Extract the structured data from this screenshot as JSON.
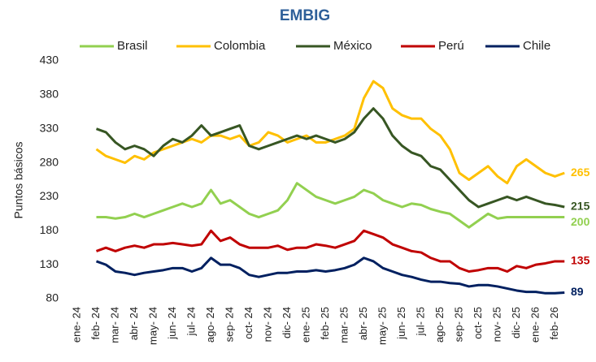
{
  "chart_data": {
    "type": "line",
    "title": "EMBIG",
    "y_label": "Puntos básicos",
    "categories": [
      "ene- 24",
      null,
      "feb- 24",
      null,
      "mar- 24",
      null,
      "abr- 24",
      null,
      "may- 24",
      null,
      "jun- 24",
      null,
      "jul- 24",
      null,
      "ago- 24",
      null,
      "sep- 24",
      null,
      "oct- 24",
      null,
      "nov- 24",
      null,
      "dic- 24",
      null,
      "ene- 25",
      null,
      "feb- 25",
      null,
      "mar- 25",
      null,
      "abr- 25",
      null,
      "may- 25",
      null,
      "jun- 25",
      null,
      "jul- 25",
      null,
      "ago- 25",
      null,
      "sep- 25",
      null,
      "oct- 25",
      null,
      "nov- 25",
      null,
      "dic- 25",
      null,
      "ene- 26",
      null,
      "feb- 26",
      null
    ],
    "series": [
      {
        "name": "Brasil",
        "color": "#92d050",
        "values": [
          null,
          null,
          200,
          200,
          198,
          200,
          205,
          200,
          205,
          210,
          215,
          220,
          215,
          220,
          240,
          220,
          225,
          215,
          205,
          200,
          205,
          210,
          225,
          250,
          240,
          230,
          225,
          220,
          225,
          230,
          240,
          235,
          225,
          220,
          215,
          220,
          218,
          212,
          208,
          205,
          195,
          185,
          195,
          205,
          198,
          200,
          200,
          200,
          200,
          200,
          200,
          200
        ]
      },
      {
        "name": "Colombia",
        "color": "#ffc000",
        "values": [
          null,
          null,
          300,
          290,
          285,
          280,
          290,
          285,
          295,
          300,
          305,
          310,
          315,
          310,
          320,
          320,
          315,
          320,
          305,
          310,
          325,
          320,
          310,
          315,
          320,
          310,
          310,
          315,
          320,
          330,
          375,
          400,
          390,
          360,
          350,
          345,
          345,
          330,
          320,
          300,
          265,
          255,
          265,
          275,
          260,
          250,
          275,
          285,
          275,
          265,
          260,
          265
        ]
      },
      {
        "name": "México",
        "color": "#375623",
        "values": [
          null,
          null,
          330,
          325,
          310,
          300,
          305,
          300,
          290,
          305,
          315,
          310,
          320,
          335,
          320,
          325,
          330,
          335,
          305,
          300,
          305,
          310,
          315,
          320,
          315,
          320,
          315,
          310,
          315,
          325,
          345,
          360,
          345,
          320,
          305,
          295,
          290,
          275,
          270,
          255,
          240,
          225,
          215,
          220,
          225,
          230,
          225,
          230,
          225,
          220,
          218,
          215
        ]
      },
      {
        "name": "Perú",
        "color": "#c00000",
        "values": [
          null,
          null,
          150,
          155,
          150,
          155,
          158,
          155,
          160,
          160,
          162,
          160,
          158,
          160,
          180,
          165,
          170,
          160,
          155,
          155,
          155,
          158,
          152,
          155,
          155,
          160,
          158,
          155,
          160,
          165,
          180,
          175,
          170,
          160,
          155,
          150,
          148,
          140,
          135,
          135,
          125,
          120,
          122,
          125,
          125,
          120,
          128,
          125,
          130,
          132,
          135,
          135
        ]
      },
      {
        "name": "Chile",
        "color": "#002060",
        "values": [
          null,
          null,
          135,
          130,
          120,
          118,
          115,
          118,
          120,
          122,
          125,
          125,
          120,
          125,
          140,
          130,
          130,
          125,
          115,
          112,
          115,
          118,
          118,
          120,
          120,
          122,
          120,
          122,
          125,
          130,
          140,
          135,
          125,
          120,
          115,
          112,
          108,
          105,
          105,
          103,
          102,
          98,
          100,
          100,
          98,
          95,
          92,
          90,
          90,
          88,
          88,
          89
        ]
      }
    ],
    "ylim": [
      80,
      430
    ],
    "yticks": [
      80,
      130,
      180,
      230,
      280,
      330,
      380,
      430
    ],
    "grid": false,
    "legend": "top"
  }
}
